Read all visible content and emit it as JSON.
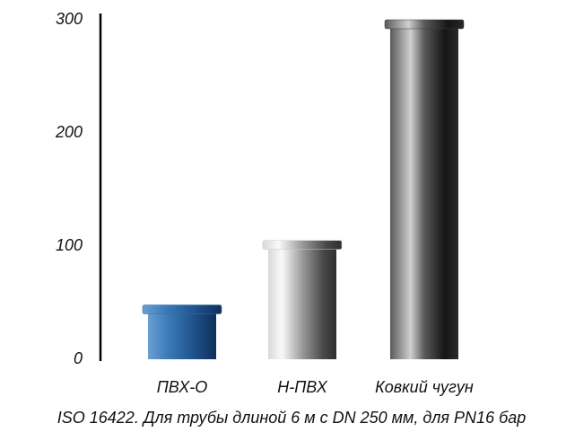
{
  "chart_data": {
    "type": "bar",
    "categories": [
      "ПВХ-О",
      "Н-ПВХ",
      "Ковкий чугун"
    ],
    "values": [
      48,
      105,
      300
    ],
    "colors": [
      "#2f6fa8",
      "#c9c9c9",
      "#3a3a3a"
    ],
    "ylim": [
      0,
      300
    ],
    "yticks": [
      0,
      100,
      200,
      300
    ],
    "grid": false,
    "caption": "ISO 16422. Для трубы длиной 6 м с DN 250 мм, для PN16 бар"
  }
}
